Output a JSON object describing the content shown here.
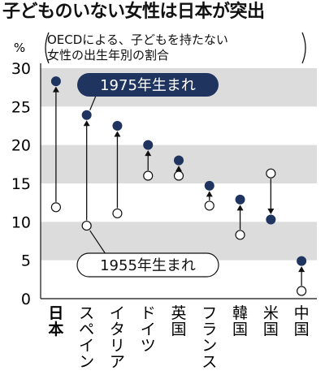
{
  "title": "子どものいない女性は日本が突出",
  "subtitle_lines": [
    "OECDによる、子どもを持たない",
    "女性の出生年別の割合"
  ],
  "unit_label": "%",
  "colors": {
    "band": "#dcdcdc",
    "marker_1975": "#1f3560",
    "marker_1955": "#ffffff",
    "stroke": "#111111"
  },
  "chart_data": {
    "type": "scatter",
    "title": "子どものいない女性は日本が突出",
    "subtitle": "OECDによる、子どもを持たない女性の出生年別の割合",
    "ylabel": "%",
    "ylim": [
      0,
      30
    ],
    "yticks": [
      "0",
      "5",
      "10",
      "15",
      "20",
      "25",
      "30"
    ],
    "categories": [
      "日本",
      "スペイン",
      "イタリア",
      "ドイツ",
      "英国",
      "フランス",
      "韓国",
      "米国",
      "中国"
    ],
    "series": [
      {
        "name": "1955年生まれ",
        "values": [
          11.9,
          9.5,
          11.1,
          16.0,
          16.0,
          12.1,
          8.3,
          16.3,
          1.0
        ]
      },
      {
        "name": "1975年生まれ",
        "values": [
          28.3,
          23.9,
          22.5,
          20.0,
          18.0,
          14.7,
          12.9,
          10.3,
          4.9
        ]
      }
    ],
    "grid": "alternating horizontal bands",
    "legend": "callouts"
  }
}
